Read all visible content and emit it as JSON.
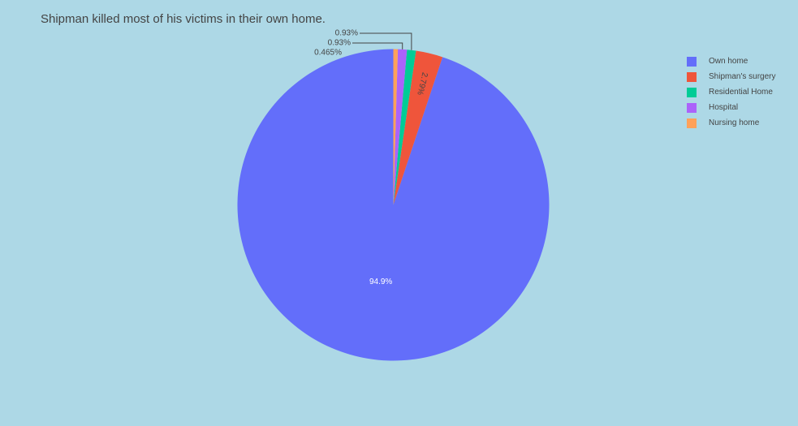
{
  "title": "Shipman killed most of his victims in their own home.",
  "chart_data": {
    "type": "pie",
    "title": "Shipman killed most of his victims in their own home.",
    "labels": [
      "Own home",
      "Shipman's surgery",
      "Residential Home",
      "Hospital",
      "Nursing home"
    ],
    "values": [
      94.9,
      2.79,
      0.93,
      0.93,
      0.465
    ],
    "percent_labels": [
      "94.9%",
      "2.79%",
      "0.93%",
      "0.93%",
      "0.465%"
    ],
    "colors": [
      "#636efa",
      "#ef553b",
      "#00cc96",
      "#ab63fa",
      "#ffa15a"
    ],
    "direction": "counterclockwise",
    "start": "top",
    "legend_position": "top-right"
  }
}
